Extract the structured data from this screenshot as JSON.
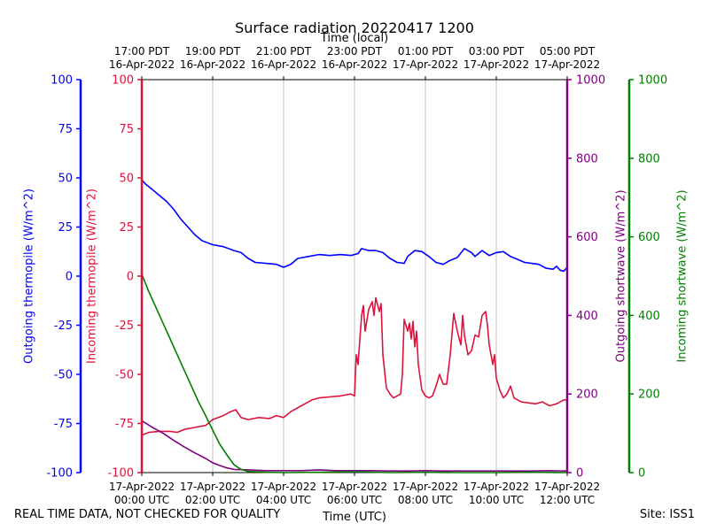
{
  "title": "Surface radiation 20220417 1200",
  "top_axis_label": "Time (local)",
  "bottom_axis_label": "Time (UTC)",
  "footer_left": "REAL TIME DATA, NOT CHECKED FOR QUALITY",
  "footer_right": "Site: ISS1",
  "chart_data": {
    "type": "line",
    "title": "Surface radiation 20220417 1200",
    "xlabel": "Time (UTC)",
    "x2label": "Time (local)",
    "xlim": [
      0,
      12
    ],
    "grid": {
      "vertical": true,
      "horizontal": false
    },
    "x_ticks_utc": [
      {
        "hour": 0,
        "line1": "17-Apr-2022",
        "line2": "00:00 UTC"
      },
      {
        "hour": 2,
        "line1": "17-Apr-2022",
        "line2": "02:00 UTC"
      },
      {
        "hour": 4,
        "line1": "17-Apr-2022",
        "line2": "04:00 UTC"
      },
      {
        "hour": 6,
        "line1": "17-Apr-2022",
        "line2": "06:00 UTC"
      },
      {
        "hour": 8,
        "line1": "17-Apr-2022",
        "line2": "08:00 UTC"
      },
      {
        "hour": 10,
        "line1": "17-Apr-2022",
        "line2": "10:00 UTC"
      },
      {
        "hour": 12,
        "line1": "17-Apr-2022",
        "line2": "12:00 UTC"
      }
    ],
    "x_ticks_local": [
      {
        "hour": 0,
        "line1": "17:00 PDT",
        "line2": "16-Apr-2022"
      },
      {
        "hour": 2,
        "line1": "19:00 PDT",
        "line2": "16-Apr-2022"
      },
      {
        "hour": 4,
        "line1": "21:00 PDT",
        "line2": "16-Apr-2022"
      },
      {
        "hour": 6,
        "line1": "23:00 PDT",
        "line2": "16-Apr-2022"
      },
      {
        "hour": 8,
        "line1": "01:00 PDT",
        "line2": "17-Apr-2022"
      },
      {
        "hour": 10,
        "line1": "03:00 PDT",
        "line2": "17-Apr-2022"
      },
      {
        "hour": 12,
        "line1": "05:00 PDT",
        "line2": "17-Apr-2022"
      }
    ],
    "axes": {
      "outgoing_thermopile": {
        "label": "Outgoing thermopile (W/m^2)",
        "color": "#0000ff",
        "ylim": [
          -100,
          100
        ],
        "ticks": [
          -100,
          -75,
          -50,
          -25,
          0,
          25,
          50,
          75,
          100
        ]
      },
      "incoming_thermopile": {
        "label": "Incoming thermopile (W/m^2)",
        "color": "#dc143c",
        "ylim": [
          -100,
          100
        ],
        "ticks": [
          -100,
          -75,
          -50,
          -25,
          0,
          25,
          50,
          75,
          100
        ]
      },
      "outgoing_shortwave": {
        "label": "Outgoing shortwave (W/m^2)",
        "color": "#800080",
        "ylim": [
          0,
          1000
        ],
        "ticks": [
          0,
          200,
          400,
          600,
          800,
          1000
        ]
      },
      "incoming_shortwave": {
        "label": "Incoming shortwave (W/m^2)",
        "color": "#008000",
        "ylim": [
          0,
          1000
        ],
        "ticks": [
          0,
          200,
          400,
          600,
          800,
          1000
        ]
      }
    },
    "series": [
      {
        "name": "Outgoing thermopile",
        "axis": "outgoing_thermopile",
        "color": "#0000ff",
        "points": [
          [
            0,
            49
          ],
          [
            0.1,
            47
          ],
          [
            0.3,
            44
          ],
          [
            0.5,
            41
          ],
          [
            0.7,
            38
          ],
          [
            0.9,
            34
          ],
          [
            1.1,
            29
          ],
          [
            1.3,
            25
          ],
          [
            1.5,
            21
          ],
          [
            1.7,
            18
          ],
          [
            2.0,
            16
          ],
          [
            2.3,
            15
          ],
          [
            2.6,
            13
          ],
          [
            2.8,
            12
          ],
          [
            3.0,
            9
          ],
          [
            3.2,
            7
          ],
          [
            3.5,
            6.5
          ],
          [
            3.8,
            6
          ],
          [
            4.0,
            4.5
          ],
          [
            4.2,
            6
          ],
          [
            4.4,
            9
          ],
          [
            4.7,
            10
          ],
          [
            5.0,
            11
          ],
          [
            5.3,
            10.5
          ],
          [
            5.6,
            11
          ],
          [
            5.9,
            10.5
          ],
          [
            6.1,
            11.5
          ],
          [
            6.2,
            14
          ],
          [
            6.4,
            13
          ],
          [
            6.6,
            13
          ],
          [
            6.8,
            12
          ],
          [
            7.0,
            9
          ],
          [
            7.2,
            7
          ],
          [
            7.4,
            6.5
          ],
          [
            7.5,
            10
          ],
          [
            7.7,
            13
          ],
          [
            7.9,
            12.5
          ],
          [
            8.1,
            10
          ],
          [
            8.3,
            7
          ],
          [
            8.5,
            6
          ],
          [
            8.7,
            8
          ],
          [
            8.9,
            9.5
          ],
          [
            9.1,
            14
          ],
          [
            9.3,
            12
          ],
          [
            9.4,
            10
          ],
          [
            9.6,
            13
          ],
          [
            9.8,
            10.5
          ],
          [
            10.0,
            12
          ],
          [
            10.2,
            12.5
          ],
          [
            10.4,
            10
          ],
          [
            10.6,
            8.5
          ],
          [
            10.8,
            7
          ],
          [
            11.0,
            6.5
          ],
          [
            11.2,
            6
          ],
          [
            11.4,
            4
          ],
          [
            11.6,
            3.5
          ],
          [
            11.7,
            5
          ],
          [
            11.8,
            3
          ],
          [
            11.9,
            2.5
          ],
          [
            12.0,
            4.5
          ]
        ]
      },
      {
        "name": "Incoming thermopile",
        "axis": "incoming_thermopile",
        "color": "#dc143c",
        "points": [
          [
            0,
            -81
          ],
          [
            0.2,
            -79.5
          ],
          [
            0.5,
            -79
          ],
          [
            0.8,
            -79
          ],
          [
            1.0,
            -79.5
          ],
          [
            1.2,
            -78
          ],
          [
            1.5,
            -77
          ],
          [
            1.8,
            -76
          ],
          [
            2.0,
            -73
          ],
          [
            2.3,
            -71
          ],
          [
            2.5,
            -69
          ],
          [
            2.65,
            -68
          ],
          [
            2.8,
            -72
          ],
          [
            3.0,
            -73
          ],
          [
            3.3,
            -72
          ],
          [
            3.6,
            -72.5
          ],
          [
            3.8,
            -71
          ],
          [
            4.0,
            -72
          ],
          [
            4.2,
            -69
          ],
          [
            4.5,
            -66
          ],
          [
            4.8,
            -63
          ],
          [
            5.0,
            -62
          ],
          [
            5.3,
            -61.5
          ],
          [
            5.6,
            -61
          ],
          [
            5.9,
            -60
          ],
          [
            6.0,
            -61
          ],
          [
            6.05,
            -40
          ],
          [
            6.1,
            -45
          ],
          [
            6.2,
            -20
          ],
          [
            6.25,
            -15
          ],
          [
            6.3,
            -28
          ],
          [
            6.4,
            -17
          ],
          [
            6.5,
            -13
          ],
          [
            6.55,
            -20
          ],
          [
            6.6,
            -11
          ],
          [
            6.7,
            -18
          ],
          [
            6.75,
            -14
          ],
          [
            6.8,
            -40
          ],
          [
            6.9,
            -57
          ],
          [
            7.0,
            -60
          ],
          [
            7.1,
            -62
          ],
          [
            7.2,
            -61
          ],
          [
            7.3,
            -60
          ],
          [
            7.35,
            -50
          ],
          [
            7.4,
            -22
          ],
          [
            7.5,
            -28
          ],
          [
            7.55,
            -24
          ],
          [
            7.6,
            -32
          ],
          [
            7.65,
            -23
          ],
          [
            7.7,
            -36
          ],
          [
            7.75,
            -28
          ],
          [
            7.8,
            -45
          ],
          [
            7.9,
            -58
          ],
          [
            8.0,
            -61
          ],
          [
            8.1,
            -62
          ],
          [
            8.2,
            -61
          ],
          [
            8.3,
            -56
          ],
          [
            8.4,
            -50
          ],
          [
            8.5,
            -55
          ],
          [
            8.6,
            -55
          ],
          [
            8.7,
            -40
          ],
          [
            8.8,
            -19
          ],
          [
            8.9,
            -28
          ],
          [
            9.0,
            -35
          ],
          [
            9.05,
            -20
          ],
          [
            9.1,
            -30
          ],
          [
            9.2,
            -40
          ],
          [
            9.3,
            -38
          ],
          [
            9.4,
            -30
          ],
          [
            9.5,
            -31
          ],
          [
            9.6,
            -20
          ],
          [
            9.7,
            -18
          ],
          [
            9.75,
            -25
          ],
          [
            9.8,
            -35
          ],
          [
            9.9,
            -45
          ],
          [
            9.95,
            -40
          ],
          [
            10.0,
            -52
          ],
          [
            10.1,
            -58
          ],
          [
            10.2,
            -62
          ],
          [
            10.3,
            -60
          ],
          [
            10.4,
            -56
          ],
          [
            10.5,
            -62
          ],
          [
            10.7,
            -64
          ],
          [
            10.9,
            -64.5
          ],
          [
            11.1,
            -65
          ],
          [
            11.3,
            -64
          ],
          [
            11.5,
            -66
          ],
          [
            11.7,
            -65
          ],
          [
            11.9,
            -63
          ],
          [
            12.0,
            -63
          ]
        ]
      },
      {
        "name": "Outgoing shortwave",
        "axis": "outgoing_shortwave",
        "color": "#800080",
        "points": [
          [
            0,
            132
          ],
          [
            0.3,
            115
          ],
          [
            0.6,
            100
          ],
          [
            0.9,
            82
          ],
          [
            1.2,
            65
          ],
          [
            1.5,
            50
          ],
          [
            1.8,
            36
          ],
          [
            2.0,
            25
          ],
          [
            2.2,
            18
          ],
          [
            2.4,
            12
          ],
          [
            2.6,
            8
          ],
          [
            3.0,
            7
          ],
          [
            3.5,
            5
          ],
          [
            4.0,
            5
          ],
          [
            4.5,
            5
          ],
          [
            5.0,
            7
          ],
          [
            5.5,
            5
          ],
          [
            6.0,
            5
          ],
          [
            6.5,
            5
          ],
          [
            7.0,
            4
          ],
          [
            7.5,
            4
          ],
          [
            8.0,
            5
          ],
          [
            8.5,
            4
          ],
          [
            9.0,
            4
          ],
          [
            9.5,
            4
          ],
          [
            10.0,
            4
          ],
          [
            10.5,
            4
          ],
          [
            11.0,
            4
          ],
          [
            11.5,
            5
          ],
          [
            12.0,
            4
          ]
        ]
      },
      {
        "name": "Incoming shortwave",
        "axis": "incoming_shortwave",
        "color": "#008000",
        "points": [
          [
            0,
            505
          ],
          [
            0.2,
            460
          ],
          [
            0.4,
            420
          ],
          [
            0.6,
            380
          ],
          [
            0.8,
            340
          ],
          [
            1.0,
            300
          ],
          [
            1.2,
            260
          ],
          [
            1.4,
            220
          ],
          [
            1.6,
            180
          ],
          [
            1.8,
            145
          ],
          [
            2.0,
            108
          ],
          [
            2.2,
            72
          ],
          [
            2.4,
            45
          ],
          [
            2.6,
            20
          ],
          [
            2.8,
            8
          ],
          [
            3.0,
            3
          ],
          [
            3.5,
            1
          ],
          [
            4.0,
            0
          ],
          [
            5.0,
            1
          ],
          [
            6.0,
            2
          ],
          [
            7.0,
            0
          ],
          [
            8.0,
            1
          ],
          [
            9.0,
            0
          ],
          [
            10.0,
            0
          ],
          [
            11.0,
            1
          ],
          [
            12.0,
            0
          ]
        ]
      }
    ]
  }
}
